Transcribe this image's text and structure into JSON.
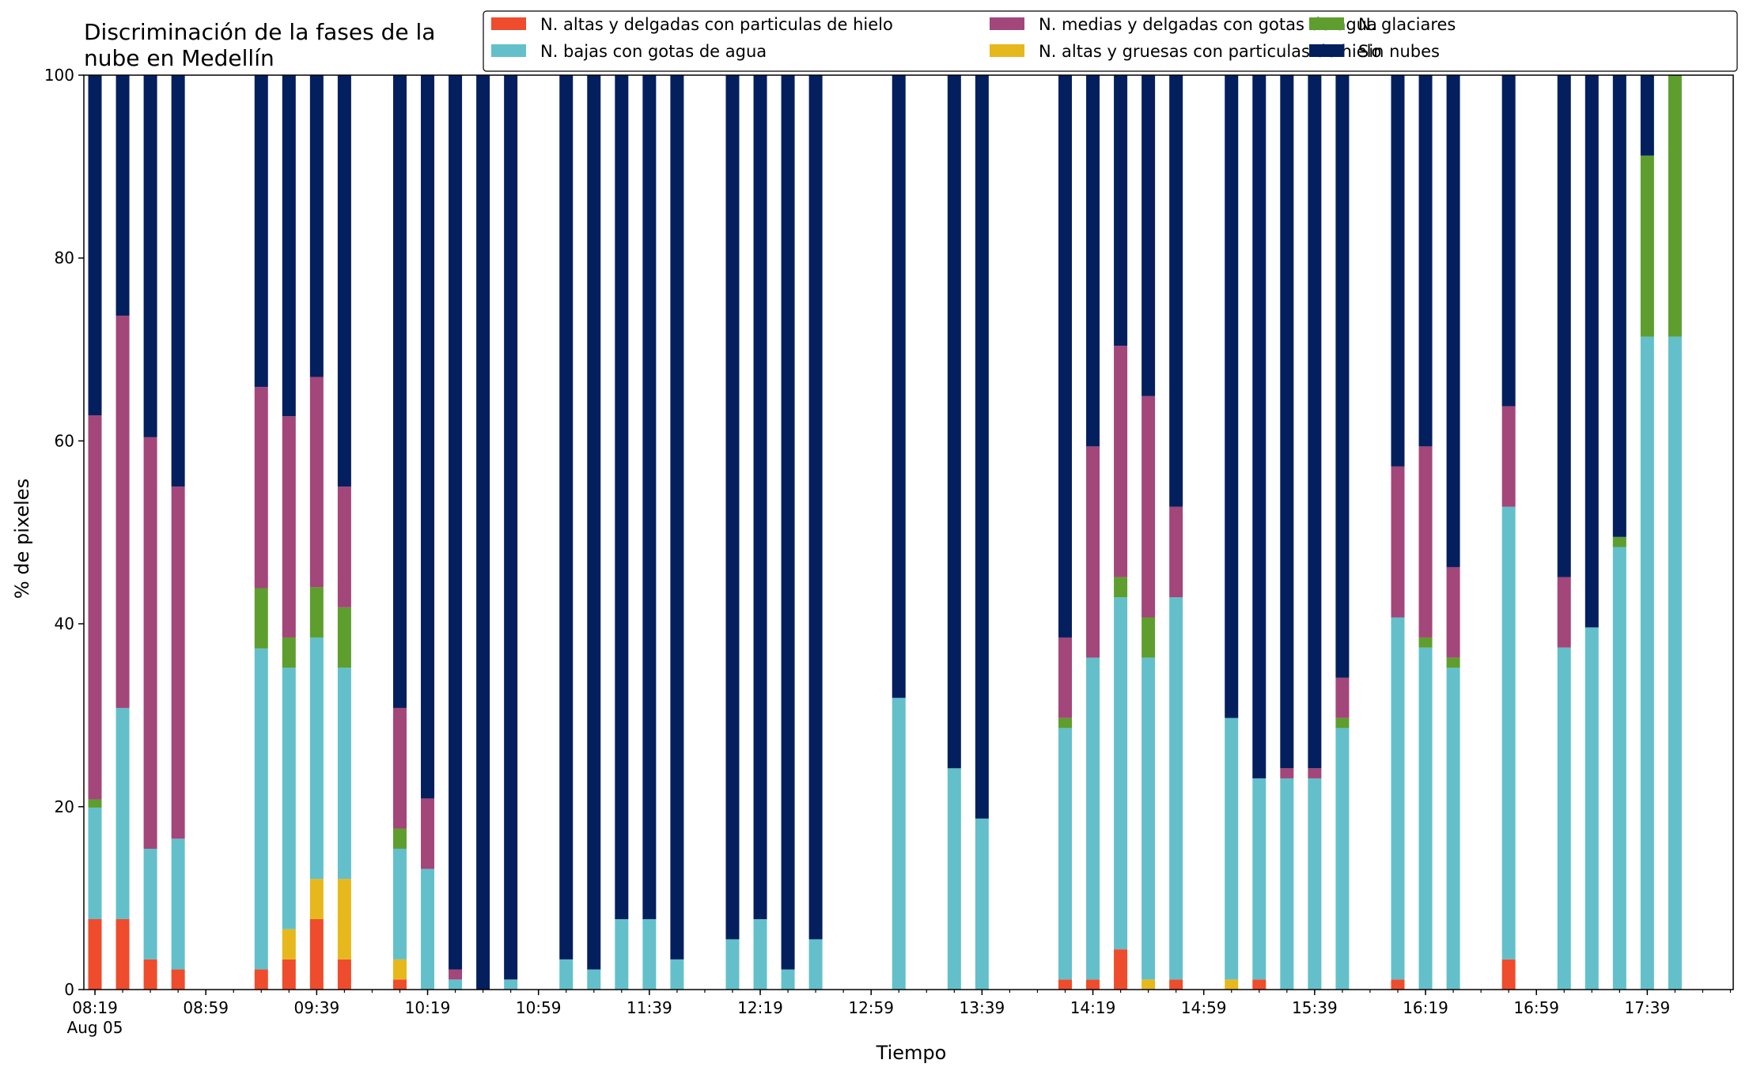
{
  "chart_data": {
    "type": "bar",
    "stacked": true,
    "title_lines": [
      "Discriminación de la fases de la",
      "nube en Medellín"
    ],
    "xlabel": "Tiempo",
    "ylabel": "% de pixeles",
    "ylim": [
      0,
      100
    ],
    "yticks": [
      0,
      20,
      40,
      60,
      80,
      100
    ],
    "xlim": [
      "08:15",
      "18:10"
    ],
    "x_tick_labels": [
      {
        "time": "08:19",
        "label": "08:19",
        "sub": "Aug 05"
      },
      {
        "time": "08:59",
        "label": "08:59"
      },
      {
        "time": "09:39",
        "label": "09:39"
      },
      {
        "time": "10:19",
        "label": "10:19"
      },
      {
        "time": "10:59",
        "label": "10:59"
      },
      {
        "time": "11:39",
        "label": "11:39"
      },
      {
        "time": "12:19",
        "label": "12:19"
      },
      {
        "time": "12:59",
        "label": "12:59"
      },
      {
        "time": "13:39",
        "label": "13:39"
      },
      {
        "time": "14:19",
        "label": "14:19"
      },
      {
        "time": "14:59",
        "label": "14:59"
      },
      {
        "time": "15:39",
        "label": "15:39"
      },
      {
        "time": "16:19",
        "label": "16:19"
      },
      {
        "time": "16:59",
        "label": "16:59"
      },
      {
        "time": "17:39",
        "label": "17:39"
      }
    ],
    "minor_tick_minutes": 10,
    "legend_position": "top-right",
    "series": [
      {
        "name": "N. altas y delgadas con particulas de hielo",
        "color": "#ee4c2c"
      },
      {
        "name": "N. altas y gruesas con particulas de hielo",
        "color": "#e6b81c"
      },
      {
        "name": "N. bajas con gotas de agua",
        "color": "#63c0cb"
      },
      {
        "name": "N. glaciares",
        "color": "#5e9e2e"
      },
      {
        "name": "N. medias y delgadas con gotas de agua",
        "color": "#a3467a"
      },
      {
        "name": "Sin nubes",
        "color": "#041f5e"
      }
    ],
    "legend_order": [
      0,
      2,
      4,
      1,
      3,
      5
    ],
    "x": [
      "08:19",
      "08:29",
      "08:39",
      "08:49",
      "09:19",
      "09:29",
      "09:39",
      "09:49",
      "10:09",
      "10:19",
      "10:29",
      "10:39",
      "10:49",
      "11:09",
      "11:19",
      "11:29",
      "11:39",
      "11:49",
      "12:09",
      "12:19",
      "12:29",
      "12:39",
      "13:09",
      "13:29",
      "13:39",
      "14:09",
      "14:19",
      "14:29",
      "14:39",
      "14:49",
      "15:09",
      "15:19",
      "15:29",
      "15:39",
      "15:49",
      "16:09",
      "16:19",
      "16:29",
      "16:49",
      "17:09",
      "17:19",
      "17:29",
      "17:39",
      "17:49"
    ],
    "values": [
      [
        7.7,
        0,
        12.2,
        0.9,
        42.0,
        37.2
      ],
      [
        7.7,
        0,
        23.1,
        0,
        42.9,
        26.3
      ],
      [
        3.3,
        0,
        12.1,
        0,
        45.0,
        39.6
      ],
      [
        2.2,
        0,
        14.3,
        0,
        38.5,
        45.0
      ],
      [
        2.2,
        0,
        35.1,
        6.6,
        22.0,
        34.1
      ],
      [
        3.3,
        3.3,
        28.6,
        3.3,
        24.2,
        37.3
      ],
      [
        7.7,
        4.4,
        26.4,
        5.5,
        23.0,
        33.0
      ],
      [
        3.3,
        8.8,
        23.1,
        6.6,
        13.2,
        45.0
      ],
      [
        1.1,
        2.2,
        12.1,
        2.2,
        13.2,
        69.2
      ],
      [
        0,
        0,
        13.2,
        0,
        7.7,
        79.1
      ],
      [
        0,
        0,
        1.1,
        0,
        1.1,
        97.8
      ],
      [
        0,
        0,
        0,
        0,
        0,
        100
      ],
      [
        0,
        0,
        1.1,
        0,
        0,
        98.9
      ],
      [
        0,
        0,
        3.3,
        0,
        0,
        96.7
      ],
      [
        0,
        0,
        2.2,
        0,
        0,
        97.8
      ],
      [
        0,
        0,
        7.7,
        0,
        0,
        92.3
      ],
      [
        0,
        0,
        7.7,
        0,
        0,
        92.3
      ],
      [
        0,
        0,
        3.3,
        0,
        0,
        96.7
      ],
      [
        0,
        0,
        5.5,
        0,
        0,
        94.5
      ],
      [
        0,
        0,
        7.7,
        0,
        0,
        92.3
      ],
      [
        0,
        0,
        2.2,
        0,
        0,
        97.8
      ],
      [
        0,
        0,
        5.5,
        0,
        0,
        94.5
      ],
      [
        0,
        0,
        31.9,
        0,
        0,
        68.1
      ],
      [
        0,
        0,
        24.2,
        0,
        0,
        75.8
      ],
      [
        0,
        0,
        18.7,
        0,
        0,
        81.3
      ],
      [
        1.1,
        0,
        27.5,
        1.1,
        8.8,
        61.5
      ],
      [
        1.1,
        0,
        35.2,
        0,
        23.1,
        40.6
      ],
      [
        4.4,
        0,
        38.5,
        2.2,
        25.3,
        29.6
      ],
      [
        0,
        1.1,
        35.2,
        4.4,
        24.2,
        35.1
      ],
      [
        1.1,
        0,
        41.8,
        0,
        9.9,
        47.2
      ],
      [
        0,
        1.1,
        28.6,
        0,
        0,
        70.3
      ],
      [
        1.1,
        0,
        22.0,
        0,
        0,
        76.9
      ],
      [
        0,
        0,
        23.1,
        0,
        1.1,
        75.8
      ],
      [
        0,
        0,
        23.1,
        0,
        1.1,
        75.8
      ],
      [
        0,
        0,
        28.6,
        1.1,
        4.4,
        65.9
      ],
      [
        1.1,
        0,
        39.6,
        0,
        16.5,
        42.8
      ],
      [
        0,
        0,
        37.4,
        1.1,
        20.9,
        40.6
      ],
      [
        0,
        0,
        35.2,
        1.1,
        9.9,
        53.8
      ],
      [
        3.3,
        0,
        49.5,
        0,
        11.0,
        36.2
      ],
      [
        0,
        0,
        37.4,
        0,
        7.7,
        54.9
      ],
      [
        0,
        0,
        39.6,
        0,
        0,
        60.4
      ],
      [
        0,
        0,
        48.4,
        1.1,
        0,
        50.5
      ],
      [
        0,
        0,
        71.4,
        19.8,
        0,
        8.8
      ],
      [
        0,
        0,
        71.4,
        28.6,
        0,
        0
      ]
    ]
  }
}
